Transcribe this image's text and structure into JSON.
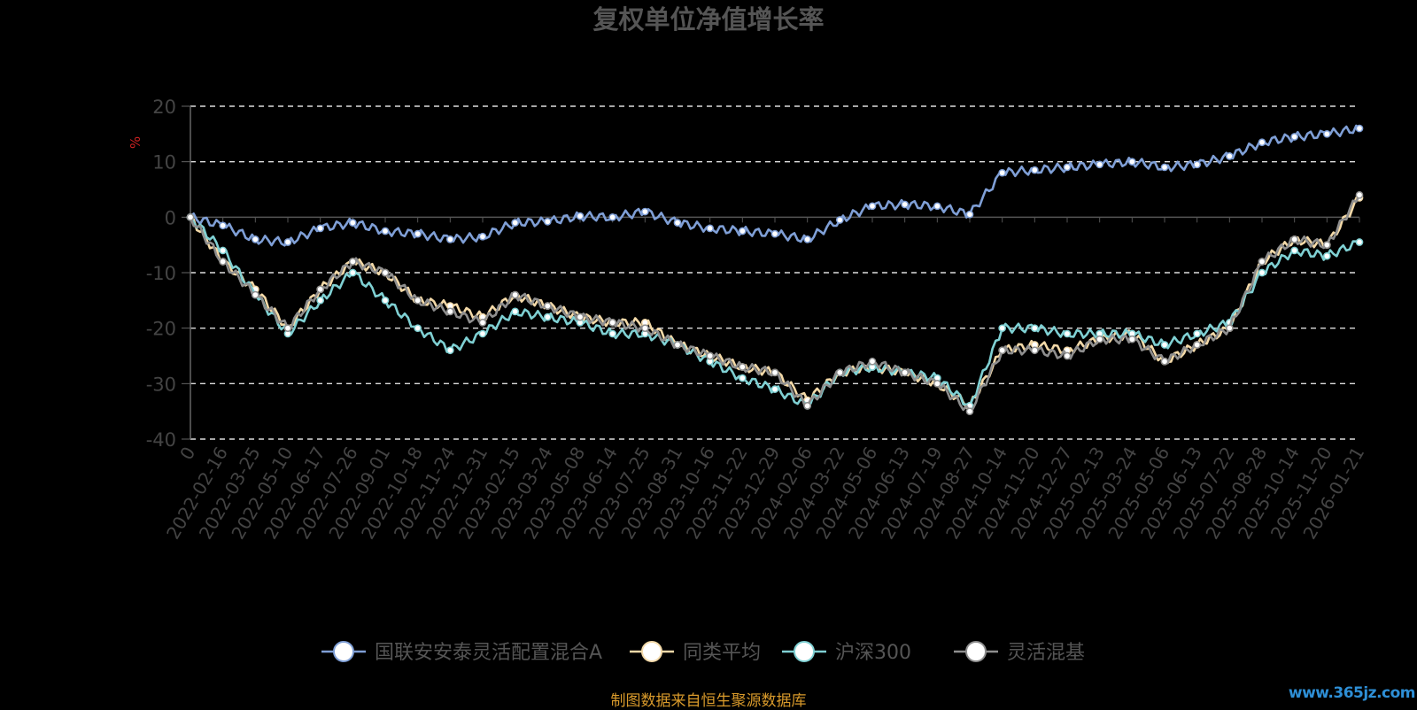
{
  "chart_data": {
    "type": "line",
    "title": "复权单位净值增长率",
    "ylabel": "%",
    "ylim": [
      -40,
      20
    ],
    "yticks": [
      20,
      10,
      0,
      -10,
      -20,
      -30,
      -40
    ],
    "grid": true,
    "legend_position": "bottom",
    "categories": [
      "0",
      "2022-02-16",
      "2022-03-25",
      "2022-05-10",
      "2022-06-17",
      "2022-07-26",
      "2022-09-01",
      "2022-10-18",
      "2022-11-24",
      "2022-12-31",
      "2023-02-15",
      "2023-03-24",
      "2023-05-08",
      "2023-06-14",
      "2023-07-25",
      "2023-08-31",
      "2023-10-16",
      "2023-11-22",
      "2023-12-29",
      "2024-02-06",
      "2024-03-22",
      "2024-05-06",
      "2024-06-13",
      "2024-07-19",
      "2024-08-27",
      "2024-10-14",
      "2024-11-20",
      "2024-12-27",
      "2025-02-13",
      "2025-03-24",
      "2025-05-06",
      "2025-06-13",
      "2025-07-22",
      "2025-08-28",
      "2025-10-14",
      "2025-11-20",
      "2026-01-21"
    ],
    "series": [
      {
        "name": "国联安安泰灵活配置混合A",
        "color": "#7f9fd6",
        "values": [
          0,
          -1.5,
          -4,
          -4.5,
          -2,
          -1,
          -2.5,
          -3,
          -4,
          -3.5,
          -1,
          -0.8,
          0.2,
          0,
          1,
          -1,
          -2,
          -2.5,
          -3,
          -4,
          -0.5,
          2,
          2.3,
          2,
          0.5,
          8,
          8.5,
          9,
          9.5,
          10,
          9,
          9.5,
          11,
          13.5,
          14.5,
          15,
          16
        ]
      },
      {
        "name": "同类平均",
        "color": "#f3d9a8",
        "values": [
          0,
          -8,
          -13,
          -20,
          -13,
          -8,
          -10,
          -15,
          -16,
          -18,
          -14,
          -16,
          -18,
          -19,
          -19,
          -23,
          -25,
          -27,
          -28,
          -33,
          -28,
          -27,
          -28,
          -30,
          -34,
          -24,
          -23,
          -24,
          -22,
          -21,
          -26,
          -23,
          -20,
          -8,
          -4,
          -5,
          3.5
        ]
      },
      {
        "name": "沪深300",
        "color": "#7fd0d3",
        "values": [
          0,
          -6,
          -14,
          -21,
          -15,
          -10,
          -15,
          -20,
          -24,
          -21,
          -17,
          -18,
          -19,
          -21,
          -21,
          -23,
          -26,
          -29,
          -31,
          -34,
          -28,
          -27,
          -28,
          -29,
          -34,
          -20,
          -20,
          -21,
          -21,
          -21,
          -23,
          -21,
          -19,
          -10,
          -6,
          -7,
          -4.5
        ]
      },
      {
        "name": "灵活混基",
        "color": "#8e8e8e",
        "values": [
          0,
          -8,
          -14,
          -20,
          -13,
          -8,
          -10,
          -15,
          -17,
          -19,
          -14,
          -16,
          -18,
          -19,
          -20,
          -23,
          -25,
          -27,
          -28,
          -34,
          -28,
          -26,
          -28,
          -30,
          -35,
          -24,
          -24,
          -25,
          -22,
          -22,
          -26,
          -23,
          -20,
          -8,
          -4,
          -5,
          4
        ]
      }
    ]
  },
  "footer_note": "制图数据来自恒生聚源数据库",
  "watermark": "www.365jz.com"
}
